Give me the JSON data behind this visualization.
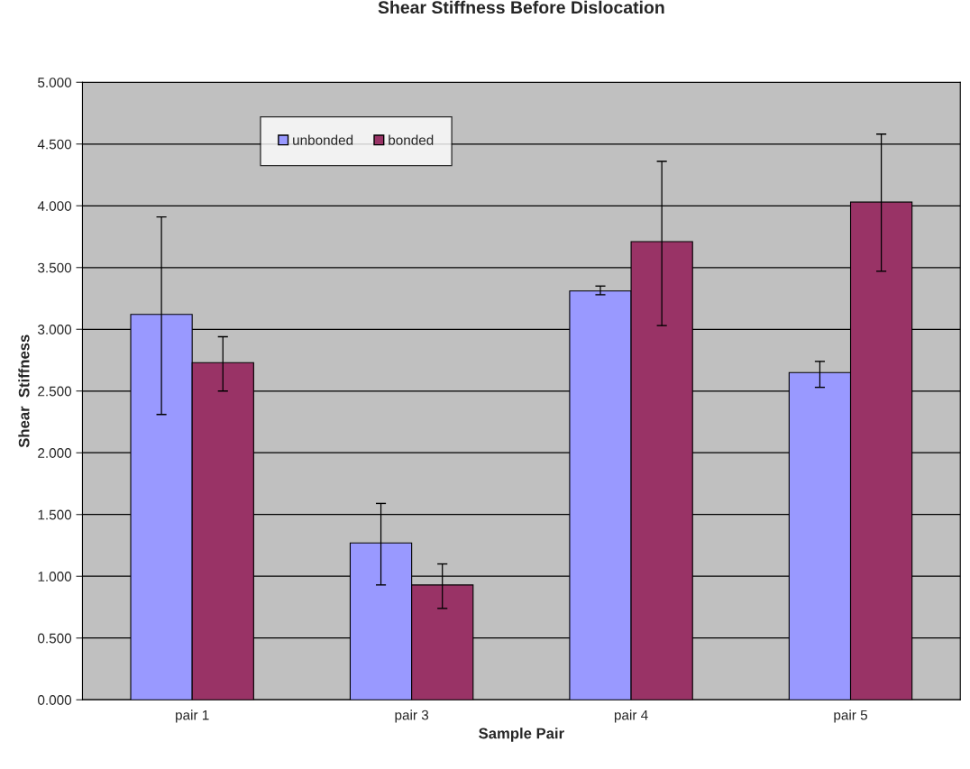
{
  "chart_data": {
    "type": "bar",
    "title": "Shear Stiffness Before Dislocation",
    "xlabel": "Sample Pair",
    "ylabel": "Shear  Stiffness",
    "categories": [
      "pair 1",
      "pair 3",
      "pair 4",
      "pair 5"
    ],
    "series": [
      {
        "name": "unbonded",
        "color": "#9999ff",
        "values": [
          3.12,
          1.27,
          3.31,
          2.65
        ],
        "errors": [
          [
            2.31,
            3.91
          ],
          [
            0.93,
            1.59
          ],
          [
            3.28,
            3.35
          ],
          [
            2.53,
            2.74
          ]
        ]
      },
      {
        "name": "bonded",
        "color": "#993366",
        "values": [
          2.73,
          0.93,
          3.71,
          4.03
        ],
        "errors": [
          [
            2.5,
            2.94
          ],
          [
            0.74,
            1.1
          ],
          [
            3.03,
            4.36
          ],
          [
            3.47,
            4.58
          ]
        ]
      }
    ],
    "ylim": [
      0,
      5
    ],
    "yticks": [
      {
        "value": 0,
        "label": "0.000"
      },
      {
        "value": 0.5,
        "label": "0.500"
      },
      {
        "value": 1,
        "label": "1.000"
      },
      {
        "value": 1.5,
        "label": "1.500"
      },
      {
        "value": 2,
        "label": "2.000"
      },
      {
        "value": 2.5,
        "label": "2.500"
      },
      {
        "value": 3,
        "label": "3.000"
      },
      {
        "value": 3.5,
        "label": "3.500"
      },
      {
        "value": 4,
        "label": "4.000"
      },
      {
        "value": 4.5,
        "label": "4.500"
      },
      {
        "value": 5,
        "label": "5.000"
      }
    ],
    "grid": "y",
    "legend": "top left"
  }
}
